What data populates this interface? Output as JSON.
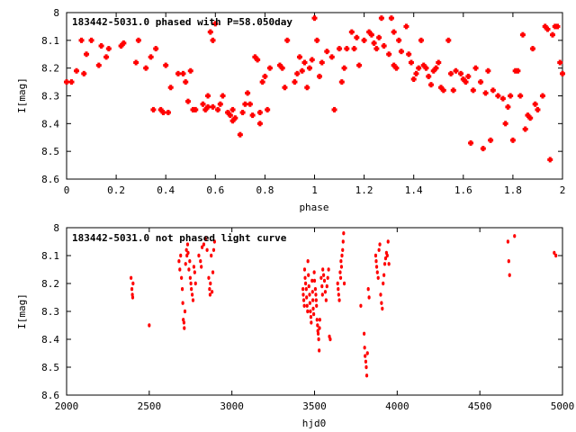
{
  "chart_data": [
    {
      "type": "scatter",
      "title": "183442-5031.0 phased with P=58.050day",
      "xlabel": "phase",
      "ylabel": "I[mag]",
      "xlim": [
        0,
        2
      ],
      "ylim": [
        8.6,
        8.0
      ],
      "y_inverted": true,
      "xticks": [
        "0",
        "0.2",
        "0.4",
        "0.6",
        "0.8",
        "1",
        "1.2",
        "1.4",
        "1.6",
        "1.8",
        "2"
      ],
      "yticks": [
        "8",
        "8.1",
        "8.2",
        "8.3",
        "8.4",
        "8.5",
        "8.6"
      ],
      "marker_color": "#ff0000",
      "grid": false,
      "legend": "none",
      "points": [
        [
          0.0,
          8.25
        ],
        [
          0.02,
          8.25
        ],
        [
          0.04,
          8.21
        ],
        [
          0.06,
          8.1
        ],
        [
          0.07,
          8.22
        ],
        [
          0.08,
          8.15
        ],
        [
          0.1,
          8.1
        ],
        [
          0.13,
          8.19
        ],
        [
          0.14,
          8.12
        ],
        [
          0.16,
          8.16
        ],
        [
          0.17,
          8.13
        ],
        [
          0.22,
          8.12
        ],
        [
          0.23,
          8.11
        ],
        [
          0.28,
          8.18
        ],
        [
          0.29,
          8.1
        ],
        [
          0.32,
          8.2
        ],
        [
          0.34,
          8.16
        ],
        [
          0.35,
          8.35
        ],
        [
          0.36,
          8.13
        ],
        [
          0.38,
          8.35
        ],
        [
          0.39,
          8.36
        ],
        [
          0.4,
          8.19
        ],
        [
          0.41,
          8.36
        ],
        [
          0.42,
          8.27
        ],
        [
          0.45,
          8.22
        ],
        [
          0.47,
          8.22
        ],
        [
          0.48,
          8.25
        ],
        [
          0.49,
          8.32
        ],
        [
          0.5,
          8.21
        ],
        [
          0.51,
          8.35
        ],
        [
          0.52,
          8.35
        ],
        [
          0.55,
          8.33
        ],
        [
          0.56,
          8.35
        ],
        [
          0.57,
          8.34
        ],
        [
          0.57,
          8.3
        ],
        [
          0.58,
          8.07
        ],
        [
          0.59,
          8.34
        ],
        [
          0.59,
          8.1
        ],
        [
          0.6,
          8.04
        ],
        [
          0.61,
          8.35
        ],
        [
          0.62,
          8.33
        ],
        [
          0.63,
          8.3
        ],
        [
          0.65,
          8.36
        ],
        [
          0.66,
          8.37
        ],
        [
          0.67,
          8.35
        ],
        [
          0.67,
          8.39
        ],
        [
          0.68,
          8.38
        ],
        [
          0.7,
          8.44
        ],
        [
          0.71,
          8.36
        ],
        [
          0.72,
          8.33
        ],
        [
          0.73,
          8.29
        ],
        [
          0.74,
          8.33
        ],
        [
          0.75,
          8.37
        ],
        [
          0.76,
          8.16
        ],
        [
          0.77,
          8.17
        ],
        [
          0.78,
          8.4
        ],
        [
          0.78,
          8.36
        ],
        [
          0.79,
          8.25
        ],
        [
          0.8,
          8.23
        ],
        [
          0.81,
          8.35
        ],
        [
          0.82,
          8.2
        ],
        [
          0.86,
          8.19
        ],
        [
          0.87,
          8.2
        ],
        [
          0.88,
          8.27
        ],
        [
          0.89,
          8.1
        ],
        [
          0.92,
          8.25
        ],
        [
          0.93,
          8.22
        ],
        [
          0.94,
          8.16
        ],
        [
          0.95,
          8.21
        ],
        [
          0.96,
          8.18
        ],
        [
          0.97,
          8.27
        ],
        [
          0.98,
          8.2
        ],
        [
          0.99,
          8.17
        ],
        [
          1.0,
          8.02
        ],
        [
          1.01,
          8.1
        ],
        [
          1.02,
          8.23
        ],
        [
          1.03,
          8.18
        ],
        [
          1.05,
          8.14
        ],
        [
          1.07,
          8.16
        ],
        [
          1.08,
          8.35
        ],
        [
          1.1,
          8.13
        ],
        [
          1.11,
          8.25
        ],
        [
          1.12,
          8.2
        ],
        [
          1.13,
          8.13
        ],
        [
          1.15,
          8.07
        ],
        [
          1.16,
          8.13
        ],
        [
          1.17,
          8.09
        ],
        [
          1.18,
          8.19
        ],
        [
          1.2,
          8.1
        ],
        [
          1.22,
          8.07
        ],
        [
          1.23,
          8.08
        ],
        [
          1.24,
          8.11
        ],
        [
          1.25,
          8.13
        ],
        [
          1.26,
          8.09
        ],
        [
          1.27,
          8.02
        ],
        [
          1.28,
          8.12
        ],
        [
          1.3,
          8.15
        ],
        [
          1.31,
          8.02
        ],
        [
          1.32,
          8.07
        ],
        [
          1.32,
          8.19
        ],
        [
          1.33,
          8.2
        ],
        [
          1.34,
          8.1
        ],
        [
          1.35,
          8.14
        ],
        [
          1.37,
          8.05
        ],
        [
          1.38,
          8.15
        ],
        [
          1.39,
          8.18
        ],
        [
          1.4,
          8.24
        ],
        [
          1.41,
          8.22
        ],
        [
          1.42,
          8.2
        ],
        [
          1.43,
          8.1
        ],
        [
          1.44,
          8.19
        ],
        [
          1.45,
          8.2
        ],
        [
          1.46,
          8.23
        ],
        [
          1.47,
          8.26
        ],
        [
          1.48,
          8.21
        ],
        [
          1.49,
          8.2
        ],
        [
          1.5,
          8.18
        ],
        [
          1.51,
          8.27
        ],
        [
          1.52,
          8.28
        ],
        [
          1.54,
          8.1
        ],
        [
          1.55,
          8.22
        ],
        [
          1.56,
          8.28
        ],
        [
          1.57,
          8.21
        ],
        [
          1.59,
          8.22
        ],
        [
          1.6,
          8.24
        ],
        [
          1.61,
          8.25
        ],
        [
          1.62,
          8.23
        ],
        [
          1.63,
          8.47
        ],
        [
          1.64,
          8.28
        ],
        [
          1.65,
          8.2
        ],
        [
          1.67,
          8.25
        ],
        [
          1.68,
          8.49
        ],
        [
          1.69,
          8.29
        ],
        [
          1.7,
          8.21
        ],
        [
          1.71,
          8.46
        ],
        [
          1.72,
          8.28
        ],
        [
          1.74,
          8.3
        ],
        [
          1.76,
          8.31
        ],
        [
          1.77,
          8.4
        ],
        [
          1.78,
          8.34
        ],
        [
          1.79,
          8.3
        ],
        [
          1.8,
          8.46
        ],
        [
          1.81,
          8.21
        ],
        [
          1.82,
          8.21
        ],
        [
          1.83,
          8.3
        ],
        [
          1.84,
          8.08
        ],
        [
          1.85,
          8.42
        ],
        [
          1.86,
          8.37
        ],
        [
          1.87,
          8.38
        ],
        [
          1.88,
          8.13
        ],
        [
          1.89,
          8.33
        ],
        [
          1.9,
          8.35
        ],
        [
          1.92,
          8.3
        ],
        [
          1.93,
          8.05
        ],
        [
          1.94,
          8.06
        ],
        [
          1.95,
          8.53
        ],
        [
          1.96,
          8.08
        ],
        [
          1.97,
          8.05
        ],
        [
          1.98,
          8.05
        ],
        [
          1.99,
          8.18
        ],
        [
          2.0,
          8.22
        ]
      ]
    },
    {
      "type": "scatter",
      "title": "183442-5031.0 not phased light curve",
      "xlabel": "hjd0",
      "ylabel": "I[mag]",
      "xlim": [
        2000,
        5000
      ],
      "ylim": [
        8.6,
        8.0
      ],
      "y_inverted": true,
      "xticks": [
        "2000",
        "2500",
        "3000",
        "3500",
        "4000",
        "4500",
        "5000"
      ],
      "yticks": [
        "8",
        "8.1",
        "8.2",
        "8.3",
        "8.4",
        "8.5",
        "8.6"
      ],
      "marker_color": "#ff0000",
      "grid": false,
      "legend": "none",
      "points": [
        [
          2390,
          8.18
        ],
        [
          2395,
          8.22
        ],
        [
          2398,
          8.24
        ],
        [
          2400,
          8.25
        ],
        [
          2402,
          8.2
        ],
        [
          2500,
          8.35
        ],
        [
          2680,
          8.12
        ],
        [
          2685,
          8.15
        ],
        [
          2690,
          8.1
        ],
        [
          2695,
          8.18
        ],
        [
          2700,
          8.22
        ],
        [
          2703,
          8.27
        ],
        [
          2706,
          8.33
        ],
        [
          2710,
          8.34
        ],
        [
          2712,
          8.36
        ],
        [
          2716,
          8.3
        ],
        [
          2720,
          8.13
        ],
        [
          2725,
          8.08
        ],
        [
          2728,
          8.1
        ],
        [
          2732,
          8.06
        ],
        [
          2735,
          8.09
        ],
        [
          2740,
          8.15
        ],
        [
          2745,
          8.12
        ],
        [
          2748,
          8.18
        ],
        [
          2752,
          8.2
        ],
        [
          2755,
          8.22
        ],
        [
          2760,
          8.24
        ],
        [
          2765,
          8.26
        ],
        [
          2770,
          8.14
        ],
        [
          2775,
          8.16
        ],
        [
          2780,
          8.2
        ],
        [
          2800,
          8.1
        ],
        [
          2810,
          8.12
        ],
        [
          2815,
          8.14
        ],
        [
          2820,
          8.07
        ],
        [
          2830,
          8.06
        ],
        [
          2840,
          8.04
        ],
        [
          2850,
          8.08
        ],
        [
          2860,
          8.18
        ],
        [
          2865,
          8.22
        ],
        [
          2868,
          8.24
        ],
        [
          2870,
          8.2
        ],
        [
          2875,
          8.1
        ],
        [
          2880,
          8.23
        ],
        [
          2885,
          8.16
        ],
        [
          2890,
          8.08
        ],
        [
          2895,
          8.05
        ],
        [
          3430,
          8.22
        ],
        [
          3432,
          8.24
        ],
        [
          3435,
          8.26
        ],
        [
          3438,
          8.28
        ],
        [
          3440,
          8.15
        ],
        [
          3443,
          8.18
        ],
        [
          3446,
          8.2
        ],
        [
          3450,
          8.22
        ],
        [
          3452,
          8.25
        ],
        [
          3455,
          8.28
        ],
        [
          3458,
          8.3
        ],
        [
          3460,
          8.12
        ],
        [
          3463,
          8.17
        ],
        [
          3466,
          8.21
        ],
        [
          3470,
          8.24
        ],
        [
          3472,
          8.27
        ],
        [
          3475,
          8.3
        ],
        [
          3478,
          8.32
        ],
        [
          3480,
          8.34
        ],
        [
          3485,
          8.19
        ],
        [
          3488,
          8.23
        ],
        [
          3490,
          8.26
        ],
        [
          3492,
          8.29
        ],
        [
          3495,
          8.31
        ],
        [
          3498,
          8.16
        ],
        [
          3500,
          8.19
        ],
        [
          3505,
          8.22
        ],
        [
          3508,
          8.24
        ],
        [
          3510,
          8.26
        ],
        [
          3512,
          8.28
        ],
        [
          3515,
          8.33
        ],
        [
          3518,
          8.35
        ],
        [
          3520,
          8.37
        ],
        [
          3522,
          8.38
        ],
        [
          3525,
          8.4
        ],
        [
          3528,
          8.44
        ],
        [
          3530,
          8.36
        ],
        [
          3532,
          8.33
        ],
        [
          3540,
          8.18
        ],
        [
          3545,
          8.21
        ],
        [
          3548,
          8.24
        ],
        [
          3550,
          8.15
        ],
        [
          3555,
          8.17
        ],
        [
          3560,
          8.19
        ],
        [
          3565,
          8.23
        ],
        [
          3570,
          8.26
        ],
        [
          3575,
          8.21
        ],
        [
          3580,
          8.18
        ],
        [
          3585,
          8.15
        ],
        [
          3590,
          8.39
        ],
        [
          3595,
          8.4
        ],
        [
          3640,
          8.2
        ],
        [
          3643,
          8.22
        ],
        [
          3646,
          8.24
        ],
        [
          3650,
          8.26
        ],
        [
          3655,
          8.16
        ],
        [
          3658,
          8.18
        ],
        [
          3660,
          8.12
        ],
        [
          3663,
          8.14
        ],
        [
          3666,
          8.1
        ],
        [
          3670,
          8.08
        ],
        [
          3673,
          8.05
        ],
        [
          3676,
          8.02
        ],
        [
          3680,
          8.2
        ],
        [
          3780,
          8.28
        ],
        [
          3800,
          8.38
        ],
        [
          3803,
          8.43
        ],
        [
          3806,
          8.46
        ],
        [
          3810,
          8.48
        ],
        [
          3813,
          8.5
        ],
        [
          3816,
          8.53
        ],
        [
          3820,
          8.45
        ],
        [
          3825,
          8.22
        ],
        [
          3830,
          8.25
        ],
        [
          3870,
          8.1
        ],
        [
          3873,
          8.12
        ],
        [
          3876,
          8.14
        ],
        [
          3880,
          8.16
        ],
        [
          3885,
          8.18
        ],
        [
          3890,
          8.08
        ],
        [
          3895,
          8.06
        ],
        [
          3900,
          8.24
        ],
        [
          3905,
          8.27
        ],
        [
          3910,
          8.29
        ],
        [
          3915,
          8.2
        ],
        [
          3920,
          8.17
        ],
        [
          3925,
          8.13
        ],
        [
          3930,
          8.11
        ],
        [
          3935,
          8.09
        ],
        [
          3940,
          8.1
        ],
        [
          3945,
          8.05
        ],
        [
          3950,
          8.13
        ],
        [
          4670,
          8.05
        ],
        [
          4675,
          8.12
        ],
        [
          4680,
          8.17
        ],
        [
          4710,
          8.03
        ],
        [
          4950,
          8.09
        ],
        [
          4960,
          8.1
        ]
      ]
    }
  ]
}
